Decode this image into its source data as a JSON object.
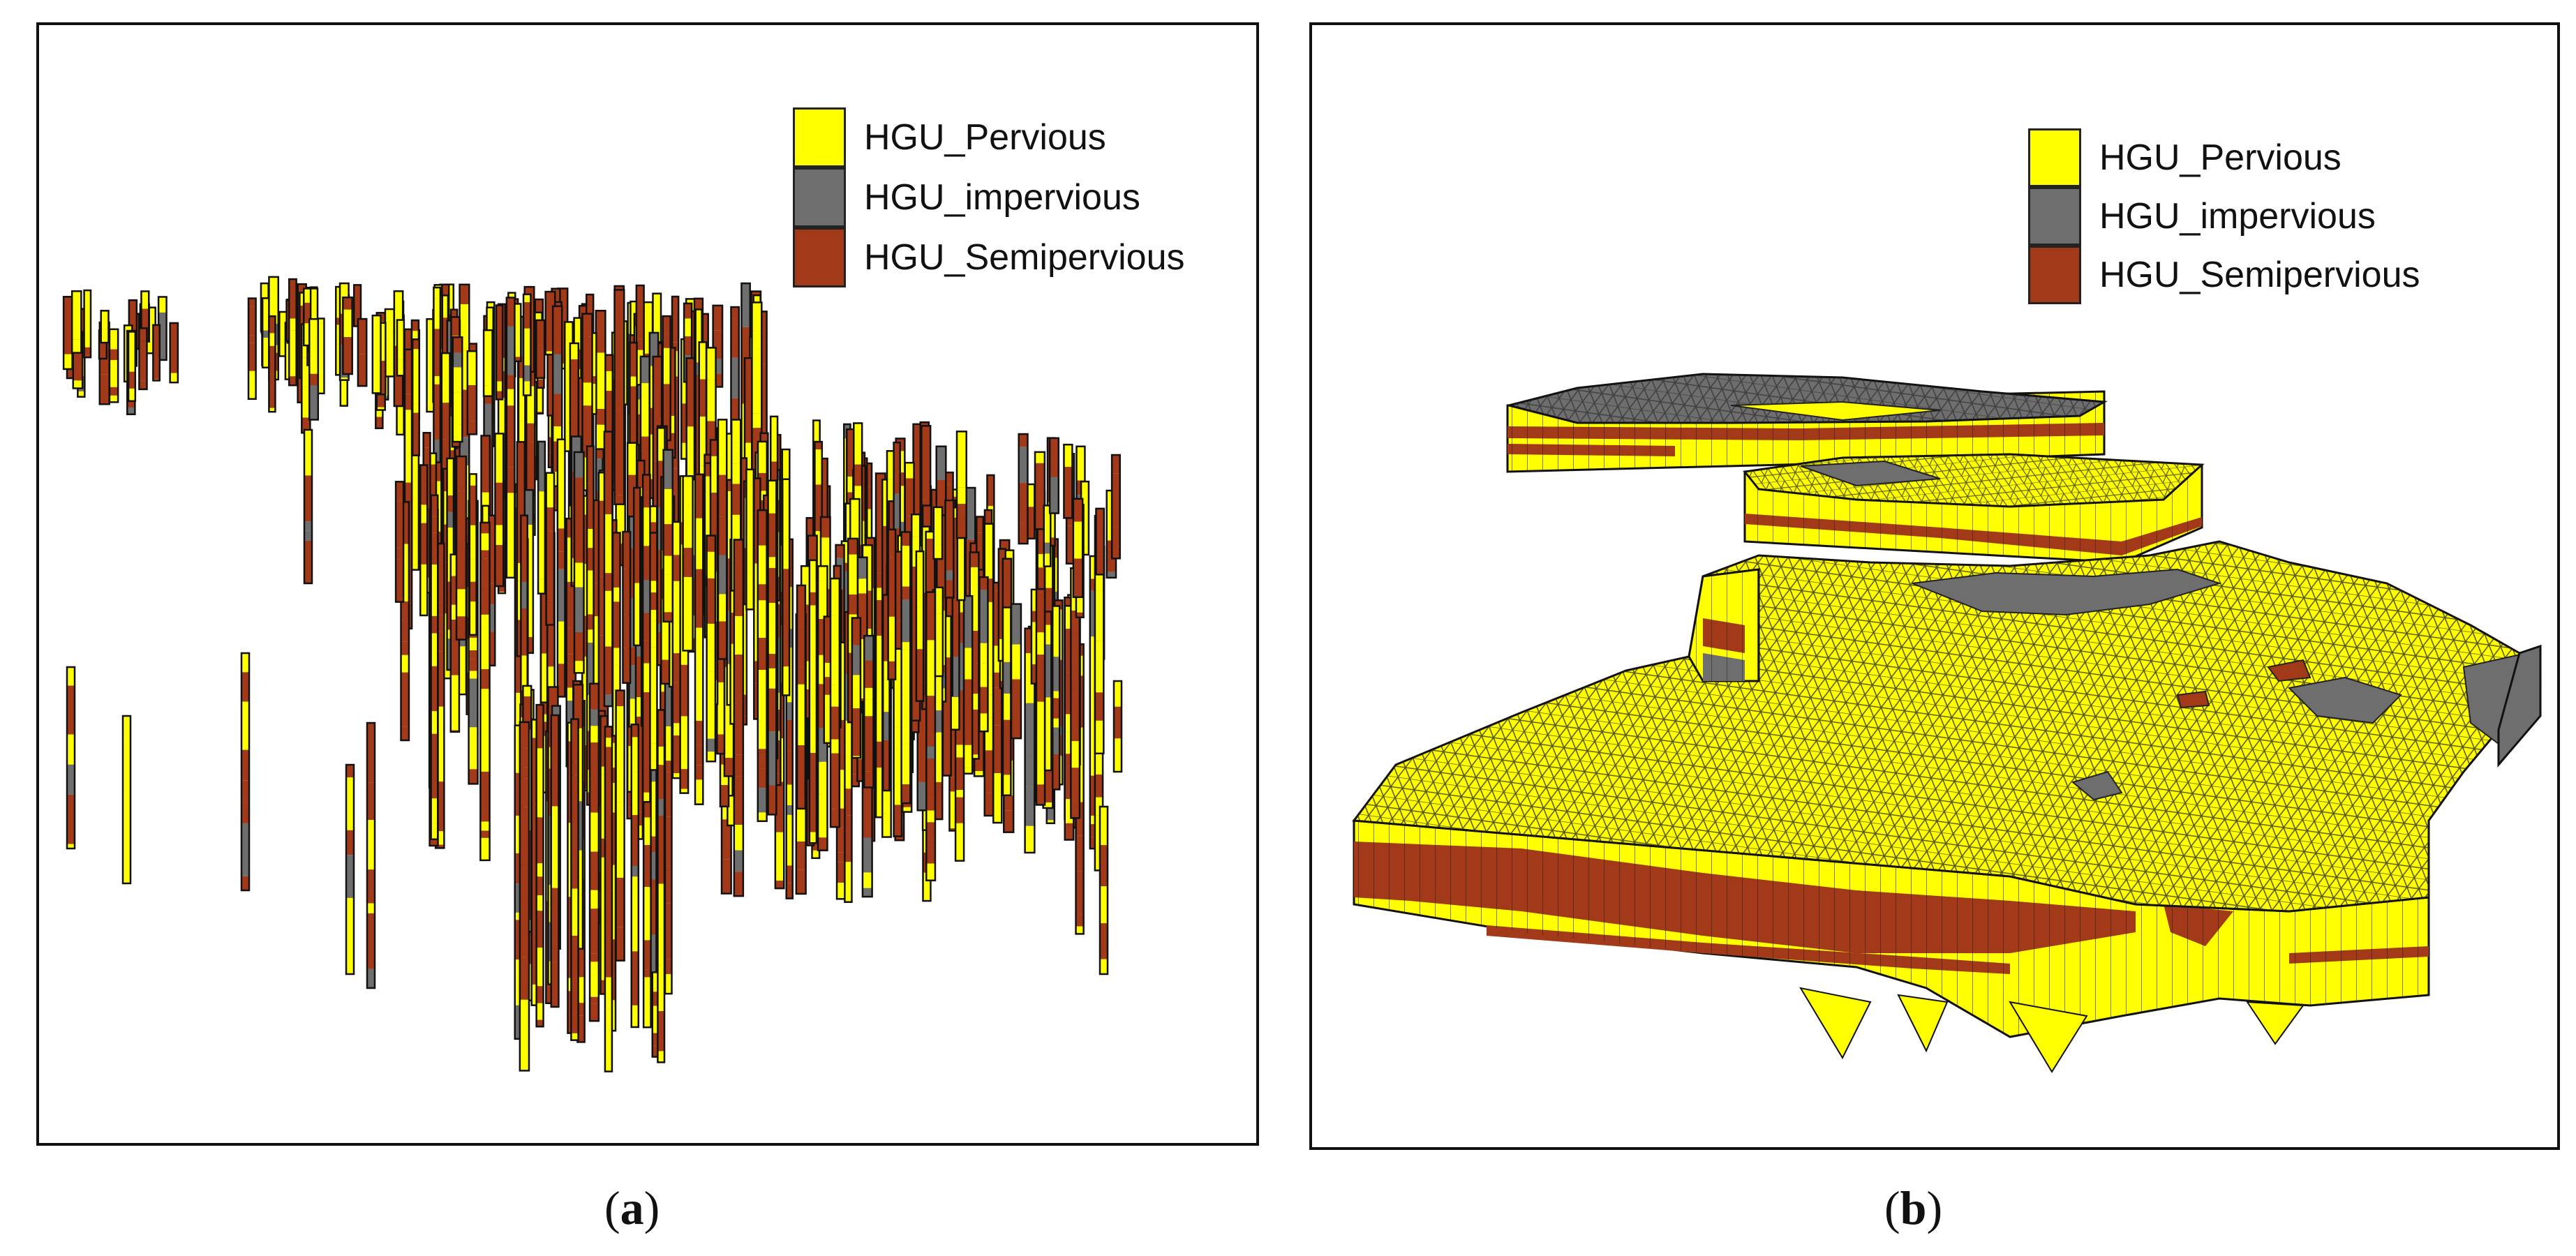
{
  "colors": {
    "pervious": "#ffff00",
    "impervious": "#6e6e6e",
    "semipervious": "#a23a1a",
    "outline": "#111111"
  },
  "panel_a": {
    "legend": [
      {
        "label": "HGU_Pervious",
        "color_key": "pervious"
      },
      {
        "label": "HGU_impervious",
        "color_key": "impervious"
      },
      {
        "label": "HGU_Semipervious",
        "color_key": "semipervious"
      }
    ],
    "caption_letter": "a"
  },
  "panel_b": {
    "legend": [
      {
        "label": "HGU_Pervious",
        "color_key": "pervious"
      },
      {
        "label": "HGU_impervious",
        "color_key": "impervious"
      },
      {
        "label": "HGU_Semipervious",
        "color_key": "semipervious"
      }
    ],
    "caption_letter": "b"
  }
}
